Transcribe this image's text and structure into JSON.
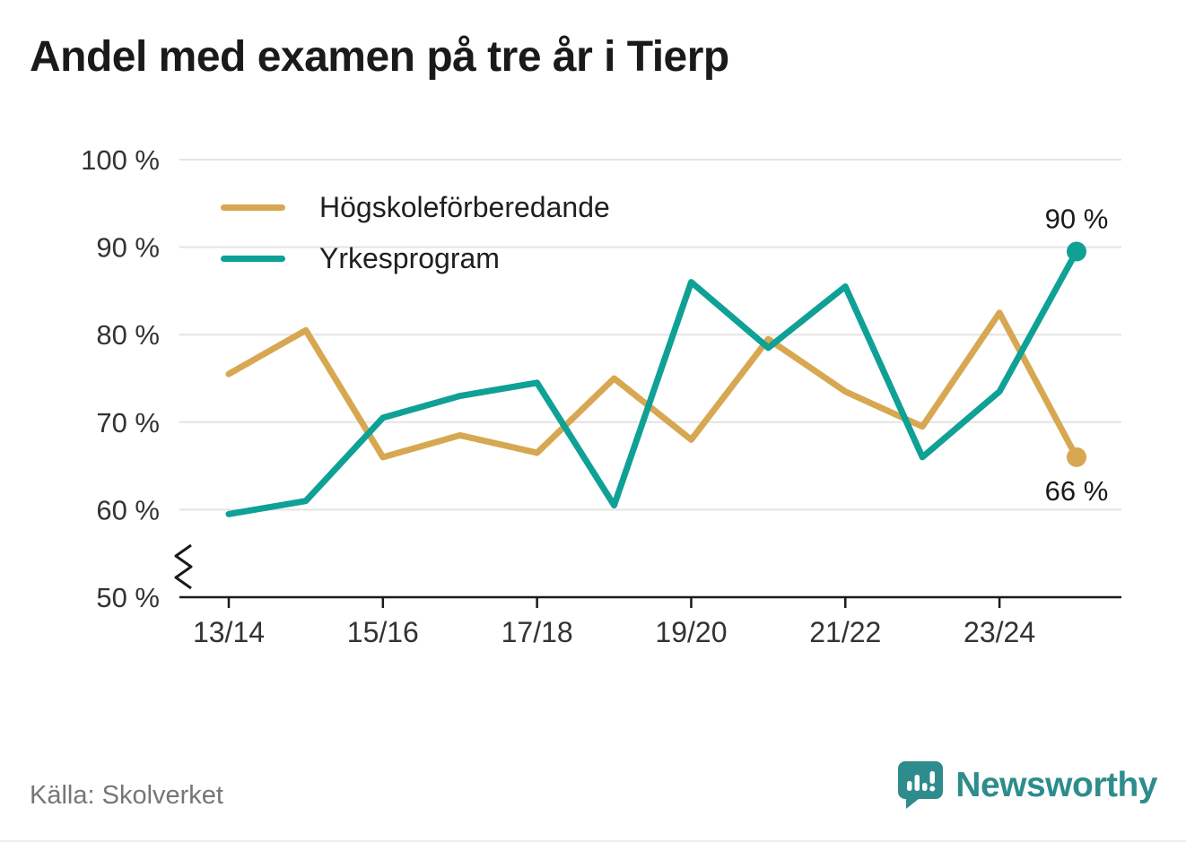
{
  "title": "Andel med examen på tre år i Tierp",
  "source": "Källa: Skolverket",
  "brand": {
    "name": "Newsworthy",
    "color": "#2E8C8C"
  },
  "chart_data": {
    "type": "line",
    "x": [
      "13/14",
      "14/15",
      "15/16",
      "16/17",
      "17/18",
      "18/19",
      "19/20",
      "20/21",
      "21/22",
      "22/23",
      "23/24",
      "24/25"
    ],
    "x_tick_indices": [
      0,
      2,
      4,
      6,
      8,
      10
    ],
    "x_tick_labels": [
      "13/14",
      "15/16",
      "17/18",
      "19/20",
      "21/22",
      "23/24"
    ],
    "yticks": [
      50,
      60,
      70,
      80,
      90,
      100
    ],
    "ytick_suffix": " %",
    "ylim": [
      50,
      100
    ],
    "axis_break": true,
    "grid": true,
    "legend_position": "top-left",
    "series": [
      {
        "name": "Högskoleförberedande",
        "color": "#D7A751",
        "values": [
          75.5,
          80.5,
          66,
          68.5,
          66.5,
          75,
          68,
          79.5,
          73.5,
          69.5,
          82.5,
          66
        ],
        "end_label": "66 %",
        "end_label_position": "below"
      },
      {
        "name": "Yrkesprogram",
        "color": "#0FA096",
        "values": [
          59.5,
          61,
          70.5,
          73,
          74.5,
          60.5,
          86,
          78.5,
          85.5,
          66,
          73.5,
          89.5
        ],
        "end_label": "90 %",
        "end_label_position": "above"
      }
    ]
  }
}
